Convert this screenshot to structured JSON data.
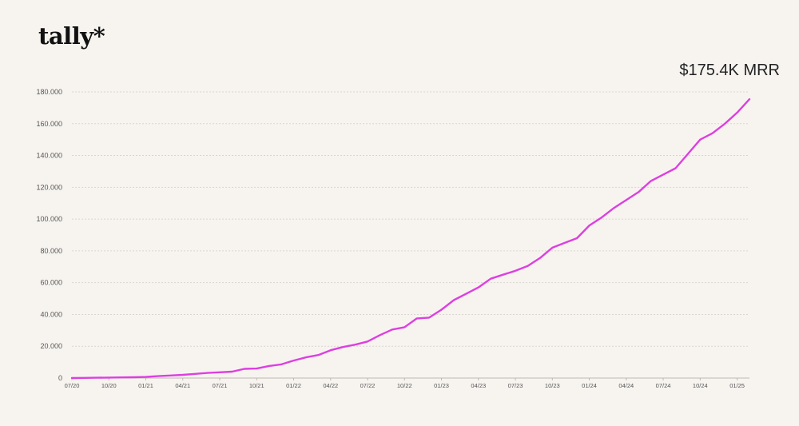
{
  "brand": {
    "logo_text": "tally*"
  },
  "headline": {
    "mrr_label": "$175.4K MRR"
  },
  "colors": {
    "line": "#dd3fe0",
    "grid": "#d9d4cf",
    "background": "#f7f4f0"
  },
  "chart_data": {
    "type": "line",
    "title": "",
    "xlabel": "",
    "ylabel": "",
    "grid": true,
    "ylim": [
      0,
      180000
    ],
    "y_ticks": [
      "0",
      "20.000",
      "40.000",
      "60.000",
      "80.000",
      "100.000",
      "120.000",
      "140.000",
      "160.000",
      "180.000"
    ],
    "y_tick_values": [
      0,
      20000,
      40000,
      60000,
      80000,
      100000,
      120000,
      140000,
      160000,
      180000
    ],
    "x_ticks": [
      "07/20",
      "10/20",
      "01/21",
      "04/21",
      "07/21",
      "10/21",
      "01/22",
      "04/22",
      "07/22",
      "10/22",
      "01/23",
      "04/23",
      "07/23",
      "10/23",
      "01/24",
      "04/24",
      "07/24",
      "10/24",
      "01/25"
    ],
    "series": [
      {
        "x": [
          "07/20",
          "08/20",
          "09/20",
          "10/20",
          "11/20",
          "12/20",
          "01/21",
          "02/21",
          "03/21",
          "04/21",
          "05/21",
          "06/21",
          "07/21",
          "08/21",
          "09/21",
          "10/21",
          "11/21",
          "12/21",
          "01/22",
          "02/22",
          "03/22",
          "04/22",
          "05/22",
          "06/22",
          "07/22",
          "08/22",
          "09/22",
          "10/22",
          "11/22",
          "12/22",
          "01/23",
          "02/23",
          "03/23",
          "04/23",
          "05/23",
          "06/23",
          "07/23",
          "08/23",
          "09/23",
          "10/23",
          "11/23",
          "12/23",
          "01/24",
          "02/24",
          "03/24",
          "04/24",
          "05/24",
          "06/24",
          "07/24",
          "08/24",
          "09/24",
          "10/24",
          "11/24",
          "12/24",
          "01/25",
          "02/25"
        ],
        "values": [
          0,
          100,
          200,
          300,
          400,
          500,
          700,
          1200,
          1600,
          2000,
          2600,
          3200,
          3600,
          4000,
          5800,
          6000,
          7600,
          8600,
          11000,
          13000,
          14500,
          17500,
          19500,
          21000,
          23000,
          27000,
          30500,
          32000,
          37500,
          38000,
          43000,
          49000,
          53000,
          57000,
          62500,
          65000,
          67500,
          70500,
          75500,
          82000,
          85000,
          88000,
          96000,
          101000,
          107000,
          112000,
          117000,
          124000,
          128000,
          132000,
          141000,
          150000,
          154000,
          160000,
          167000,
          175400
        ]
      }
    ]
  }
}
